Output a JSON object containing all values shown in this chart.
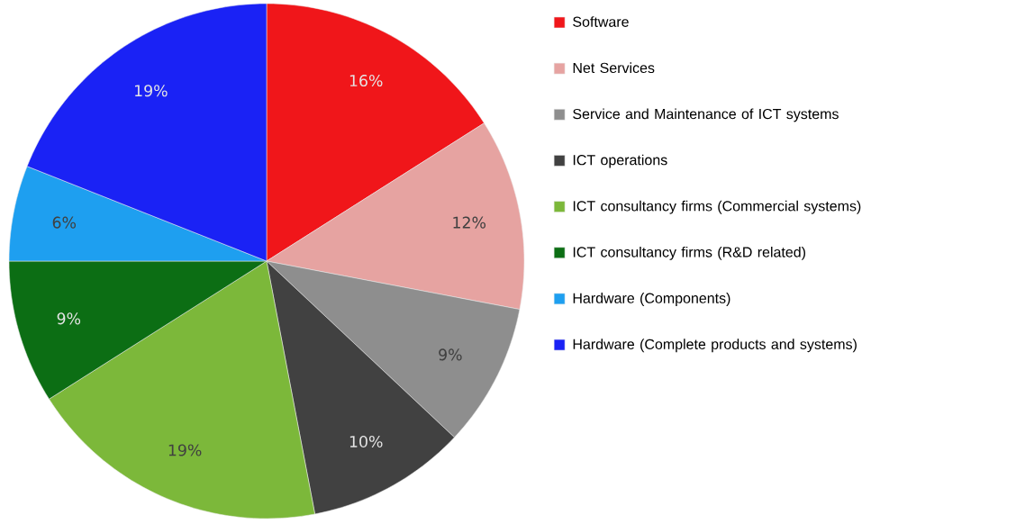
{
  "chart_data": {
    "type": "pie",
    "categories": [
      "Software",
      "Net Services",
      "Service and Maintenance of ICT systems",
      "ICT operations",
      "ICT consultancy firms (Commercial systems)",
      "ICT consultancy firms (R&D related)",
      "Hardware (Components)",
      "Hardware (Complete products and systems)"
    ],
    "values": [
      16,
      12,
      9,
      10,
      19,
      9,
      6,
      19
    ],
    "value_labels": [
      "16%",
      "12%",
      "9%",
      "10%",
      "19%",
      "9%",
      "6%",
      "19%"
    ],
    "colors": [
      "#f0161a",
      "#e6a3a1",
      "#8e8e8e",
      "#414141",
      "#7cb83a",
      "#0c6e14",
      "#1e9ff0",
      "#1a22f5"
    ],
    "legend": "right"
  }
}
